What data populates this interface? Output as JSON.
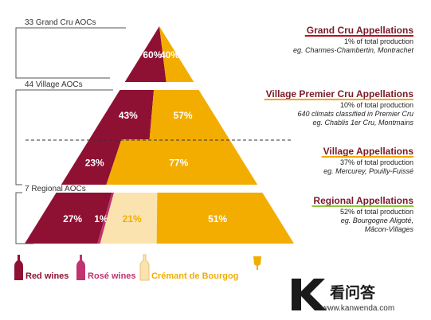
{
  "chart_data": {
    "type": "bar",
    "title": "",
    "segment_labels": [
      "Red wines",
      "Rosé wines",
      "Crémant de Bourgog",
      ""
    ],
    "tiers": [
      {
        "left_label": "33 Grand Cru AOCs",
        "heading": "Grand Cru Appellations",
        "lines": [
          "1% of total production",
          "eg. Charmes-Chambertin, Montrachet"
        ],
        "values": [
          60,
          0,
          0,
          40
        ],
        "value_labels": [
          "60%",
          "",
          "",
          "40%"
        ],
        "underline_color": "#b5121b"
      },
      {
        "left_label": "44 Village AOCs",
        "heading": "Village Premier Cru Appellations",
        "lines": [
          "10% of total production",
          "640 climats classified in Premier Cru",
          "eg. Chablis 1er Cru, Montmains"
        ],
        "values": [
          43,
          0,
          0,
          57
        ],
        "value_labels": [
          "43%",
          "",
          "",
          "57%"
        ],
        "underline_color": "#f2a900"
      },
      {
        "left_label": "",
        "heading": "Village Appellations",
        "lines": [
          "37% of total production",
          "eg. Mercurey, Pouilly-Fuissé"
        ],
        "values": [
          23,
          0,
          0,
          77
        ],
        "value_labels": [
          "23%",
          "",
          "",
          "77%"
        ],
        "underline_color": "#f2a900"
      },
      {
        "left_label": "7 Regional AOCs",
        "heading": "Regional Appellations",
        "lines": [
          "52% of total production",
          "eg. Bourgogne Aligoté,",
          "Mâcon-Villages"
        ],
        "values": [
          27,
          1,
          21,
          51
        ],
        "value_labels": [
          "27%",
          "1%",
          "21%",
          "51%"
        ],
        "underline_color": "#8dc63f"
      }
    ]
  },
  "colors": {
    "red": "#8e1133",
    "rose": "#c0336e",
    "cremant": "#fbe3b0",
    "white": "#f2ad00",
    "heading_text": "#7a1a2a",
    "body_text": "#222222"
  },
  "legend": {
    "items": [
      {
        "label": "Red wines",
        "color": "#8e1133",
        "icon": "wine-bottle-icon"
      },
      {
        "label": "Rosé wines",
        "color": "#c0336e",
        "icon": "wine-bottle-icon"
      },
      {
        "label": "Crémant de Bourgog",
        "color": "#fbe3b0",
        "icon": "wine-bottle-icon"
      },
      {
        "label": "",
        "color": "#f2ad00",
        "icon": "wine-glass-icon"
      }
    ]
  },
  "watermark": {
    "logo": "K",
    "name": "看问答",
    "url": "www.kanwenda.com"
  }
}
